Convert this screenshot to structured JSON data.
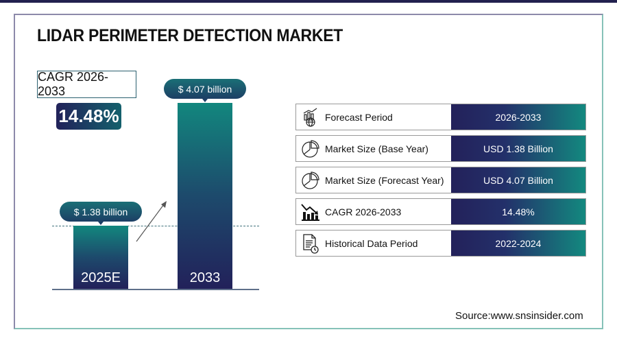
{
  "title": "LIDAR PERIMETER DETECTION MARKET",
  "cagr": {
    "label": "CAGR 2026-2033",
    "value": "14.48%"
  },
  "chart_data": {
    "type": "bar",
    "categories": [
      "2025E",
      "2033"
    ],
    "values": [
      1.38,
      4.07
    ],
    "data_labels": [
      "$ 1.38 billion",
      "$ 4.07 billion"
    ],
    "unit": "USD billion"
  },
  "table": [
    {
      "label": "Forecast Period",
      "value": "2026-2033",
      "icon": "chart-globe-icon"
    },
    {
      "label": "Market Size (Base Year)",
      "value": "USD 1.38 Billion",
      "icon": "pie-chart-icon"
    },
    {
      "label": "Market Size (Forecast Year)",
      "value": "USD 4.07 Billion",
      "icon": "pie-chart-icon"
    },
    {
      "label": "CAGR 2026-2033",
      "value": "14.48%",
      "icon": "bar-chart-decline-icon"
    },
    {
      "label": "Historical Data Period",
      "value": "2022-2024",
      "icon": "document-clock-icon"
    }
  ],
  "source": "Source:www.snsinsider.com",
  "colors": {
    "navy": "#23215a",
    "teal": "#13897f"
  }
}
